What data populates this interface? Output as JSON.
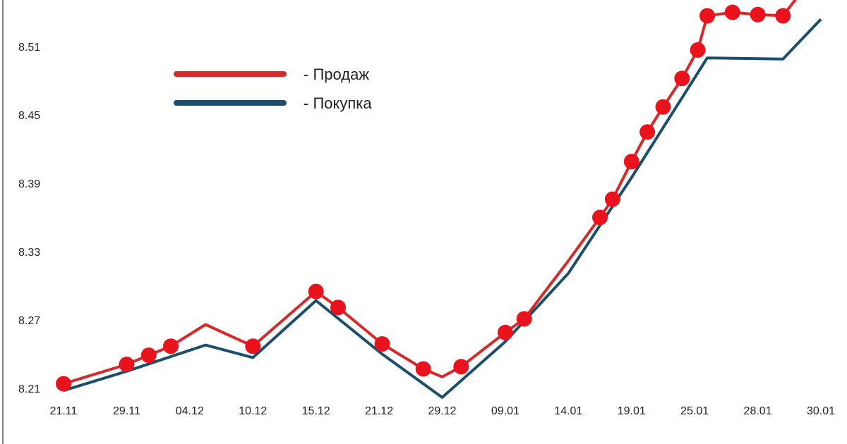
{
  "chart_data": {
    "type": "line",
    "title": "",
    "xlabel": "",
    "ylabel": "",
    "grid": false,
    "legend_placement": "top-left",
    "ylim": [
      8.21,
      8.57
    ],
    "yticks": [
      "8.21",
      "8.27",
      "8.33",
      "8.39",
      "8.45",
      "8.51"
    ],
    "xticks": [
      "21.11",
      "29.11",
      "04.12",
      "10.12",
      "15.12",
      "21.12",
      "29.12",
      "09.01",
      "14.01",
      "19.01",
      "25.01",
      "28.01",
      "30.01"
    ],
    "series": [
      {
        "name": "- Продаж",
        "color": "#d42a2a",
        "marker_color": "#e8131d",
        "points": [
          {
            "x": 0.0,
            "y": 8.214,
            "m": true
          },
          {
            "x": 1.0,
            "y": 8.231,
            "m": true
          },
          {
            "x": 1.35,
            "y": 8.239,
            "m": true
          },
          {
            "x": 1.7,
            "y": 8.247,
            "m": true
          },
          {
            "x": 2.25,
            "y": 8.266,
            "m": false
          },
          {
            "x": 3.0,
            "y": 8.247,
            "m": true
          },
          {
            "x": 4.0,
            "y": 8.295,
            "m": true
          },
          {
            "x": 4.35,
            "y": 8.281,
            "m": true
          },
          {
            "x": 5.05,
            "y": 8.249,
            "m": true
          },
          {
            "x": 5.7,
            "y": 8.227,
            "m": true
          },
          {
            "x": 6.0,
            "y": 8.22,
            "m": false
          },
          {
            "x": 6.3,
            "y": 8.229,
            "m": true
          },
          {
            "x": 7.0,
            "y": 8.259,
            "m": true
          },
          {
            "x": 7.3,
            "y": 8.271,
            "m": true
          },
          {
            "x": 8.0,
            "y": 8.322,
            "m": false
          },
          {
            "x": 8.5,
            "y": 8.36,
            "m": true
          },
          {
            "x": 8.7,
            "y": 8.376,
            "m": true
          },
          {
            "x": 9.0,
            "y": 8.409,
            "m": true
          },
          {
            "x": 9.25,
            "y": 8.435,
            "m": true
          },
          {
            "x": 9.5,
            "y": 8.457,
            "m": true
          },
          {
            "x": 9.8,
            "y": 8.482,
            "m": true
          },
          {
            "x": 10.05,
            "y": 8.507,
            "m": true
          },
          {
            "x": 10.2,
            "y": 8.537,
            "m": true
          },
          {
            "x": 10.6,
            "y": 8.54,
            "m": true
          },
          {
            "x": 11.0,
            "y": 8.538,
            "m": true
          },
          {
            "x": 11.4,
            "y": 8.537,
            "m": true
          },
          {
            "x": 12.0,
            "y": 8.58,
            "m": false
          }
        ]
      },
      {
        "name": "- Покупка",
        "color": "#1c4e6c",
        "points": [
          {
            "x": 0.0,
            "y": 8.208
          },
          {
            "x": 1.0,
            "y": 8.225
          },
          {
            "x": 2.25,
            "y": 8.248
          },
          {
            "x": 3.0,
            "y": 8.237
          },
          {
            "x": 4.0,
            "y": 8.287
          },
          {
            "x": 5.05,
            "y": 8.24
          },
          {
            "x": 6.0,
            "y": 8.202
          },
          {
            "x": 7.0,
            "y": 8.251
          },
          {
            "x": 8.0,
            "y": 8.311
          },
          {
            "x": 9.0,
            "y": 8.395
          },
          {
            "x": 10.2,
            "y": 8.5
          },
          {
            "x": 11.4,
            "y": 8.499
          },
          {
            "x": 12.0,
            "y": 8.534
          }
        ]
      }
    ]
  }
}
